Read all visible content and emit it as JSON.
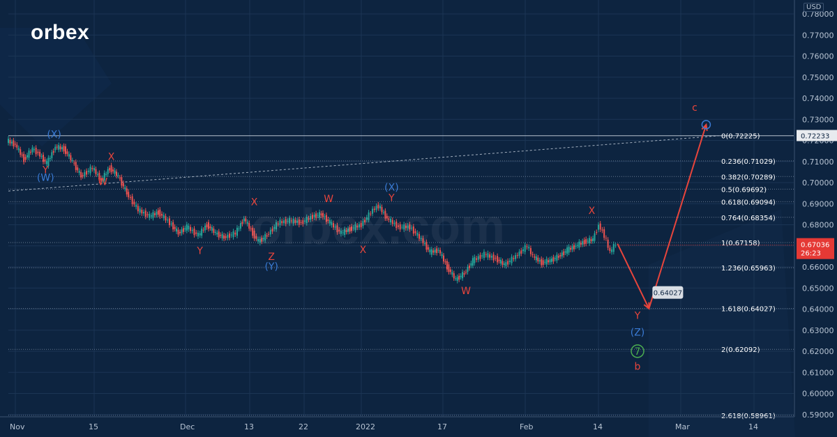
{
  "brand": {
    "logo": "orbex",
    "watermark": "orbex.com"
  },
  "colors": {
    "background": "#0d2440",
    "grid": "#1b3554",
    "text": "#b8c4d3",
    "fib": "#8b9bb0",
    "up": "#26a69a",
    "down": "#ef5350",
    "red": "#e8453c",
    "blue": "#3a7bd5",
    "green": "#4caf50",
    "price_badge": "#e53935"
  },
  "chart_data": {
    "type": "line",
    "currency": "USD",
    "x_labels": [
      "Nov",
      "15",
      "Dec",
      "13",
      "22",
      "2022",
      "17",
      "Feb",
      "14",
      "Mar",
      "14"
    ],
    "y_range": [
      0.585,
      0.785
    ],
    "y_ticks": [
      "0.78000",
      "0.77000",
      "0.76000",
      "0.75000",
      "0.74000",
      "0.73000",
      "0.72000",
      "0.71000",
      "0.70000",
      "0.69000",
      "0.68000",
      "0.67000",
      "0.66000",
      "0.65000",
      "0.64000",
      "0.63000",
      "0.62000",
      "0.61000",
      "0.60000",
      "0.59000"
    ],
    "fib_levels": [
      {
        "label": "0(0.72225)",
        "value": 0.72225
      },
      {
        "label": "0.236(0.71029)",
        "value": 0.71029
      },
      {
        "label": "0.382(0.70289)",
        "value": 0.70289
      },
      {
        "label": "0.5(0.69692)",
        "value": 0.69692
      },
      {
        "label": "0.618(0.69094)",
        "value": 0.69094
      },
      {
        "label": "0.764(0.68354)",
        "value": 0.68354
      },
      {
        "label": "1(0.67158)",
        "value": 0.67158
      },
      {
        "label": "1.236(0.65963)",
        "value": 0.65963
      },
      {
        "label": "1.618(0.64027)",
        "value": 0.64027
      },
      {
        "label": "2(0.62092)",
        "value": 0.62092
      },
      {
        "label": "2.618(0.58961)",
        "value": 0.58961
      }
    ],
    "price_series": [
      [
        0,
        0.72
      ],
      [
        3,
        0.718
      ],
      [
        6,
        0.711
      ],
      [
        9,
        0.716
      ],
      [
        11,
        0.714
      ],
      [
        14,
        0.709
      ],
      [
        17,
        0.717
      ],
      [
        20,
        0.716
      ],
      [
        23,
        0.71
      ],
      [
        26,
        0.703
      ],
      [
        30,
        0.707
      ],
      [
        33,
        0.701
      ],
      [
        36,
        0.707
      ],
      [
        39,
        0.703
      ],
      [
        42,
        0.695
      ],
      [
        46,
        0.687
      ],
      [
        50,
        0.684
      ],
      [
        53,
        0.686
      ],
      [
        57,
        0.681
      ],
      [
        60,
        0.676
      ],
      [
        63,
        0.679
      ],
      [
        67,
        0.675
      ],
      [
        70,
        0.68
      ],
      [
        73,
        0.676
      ],
      [
        76,
        0.674
      ],
      [
        80,
        0.676
      ],
      [
        83,
        0.683
      ],
      [
        86,
        0.676
      ],
      [
        88,
        0.672
      ],
      [
        91,
        0.675
      ],
      [
        95,
        0.681
      ],
      [
        99,
        0.682
      ],
      [
        103,
        0.681
      ],
      [
        107,
        0.684
      ],
      [
        110,
        0.685
      ],
      [
        113,
        0.681
      ],
      [
        117,
        0.676
      ],
      [
        120,
        0.678
      ],
      [
        124,
        0.68
      ],
      [
        128,
        0.687
      ],
      [
        130,
        0.689
      ],
      [
        133,
        0.683
      ],
      [
        137,
        0.679
      ],
      [
        141,
        0.679
      ],
      [
        145,
        0.673
      ],
      [
        148,
        0.667
      ],
      [
        151,
        0.668
      ],
      [
        154,
        0.66
      ],
      [
        157,
        0.654
      ],
      [
        160,
        0.657
      ],
      [
        163,
        0.663
      ],
      [
        167,
        0.666
      ],
      [
        171,
        0.664
      ],
      [
        174,
        0.661
      ],
      [
        178,
        0.665
      ],
      [
        182,
        0.67
      ],
      [
        184,
        0.665
      ],
      [
        187,
        0.662
      ],
      [
        190,
        0.663
      ],
      [
        193,
        0.665
      ],
      [
        196,
        0.668
      ],
      [
        199,
        0.67
      ],
      [
        202,
        0.672
      ],
      [
        205,
        0.673
      ],
      [
        207,
        0.68
      ],
      [
        209,
        0.675
      ],
      [
        211,
        0.667
      ],
      [
        213,
        0.671
      ]
    ],
    "current_price": "0.67036",
    "countdown": "26:23",
    "projections": [
      {
        "from": [
          213,
          0.671
        ],
        "to": [
          224,
          0.64027
        ]
      },
      {
        "from": [
          224,
          0.64027
        ],
        "to": [
          244,
          0.7275
        ]
      }
    ],
    "target_price": "0.64027",
    "price_line": "0.72233",
    "wave_labels": [
      {
        "text": "(X)",
        "x": 16,
        "y": 0.7213,
        "color": "blue"
      },
      {
        "text": "Y",
        "x": 13,
        "y": 0.7044,
        "color": "red"
      },
      {
        "text": "(W)",
        "x": 13,
        "y": 0.7008,
        "color": "blue"
      },
      {
        "text": "X",
        "x": 36,
        "y": 0.7107,
        "color": "red"
      },
      {
        "text": "W",
        "x": 33,
        "y": 0.6988,
        "color": "red"
      },
      {
        "text": "X",
        "x": 86,
        "y": 0.6893,
        "color": "red"
      },
      {
        "text": "Y",
        "x": 67,
        "y": 0.6661,
        "color": "red"
      },
      {
        "text": "Z",
        "x": 92,
        "y": 0.6633,
        "color": "red"
      },
      {
        "text": "(Y)",
        "x": 92,
        "y": 0.6587,
        "color": "blue"
      },
      {
        "text": "W",
        "x": 112,
        "y": 0.6908,
        "color": "red"
      },
      {
        "text": "X",
        "x": 124,
        "y": 0.6666,
        "color": "red"
      },
      {
        "text": "(X)",
        "x": 134,
        "y": 0.6962,
        "color": "blue"
      },
      {
        "text": "Y",
        "x": 134,
        "y": 0.6913,
        "color": "red"
      },
      {
        "text": "W",
        "x": 160,
        "y": 0.6471,
        "color": "red"
      },
      {
        "text": "X",
        "x": 204,
        "y": 0.6852,
        "color": "red"
      },
      {
        "text": "c",
        "x": 240,
        "y": 0.7341,
        "color": "red"
      },
      {
        "text": "Y",
        "x": 220,
        "y": 0.6354,
        "color": "red"
      },
      {
        "text": "(Z)",
        "x": 220,
        "y": 0.6275,
        "color": "blue"
      },
      {
        "text": "7",
        "x": 220,
        "y": 0.6184,
        "color": "green"
      },
      {
        "text": "b",
        "x": 220,
        "y": 0.6113,
        "color": "red"
      }
    ]
  }
}
